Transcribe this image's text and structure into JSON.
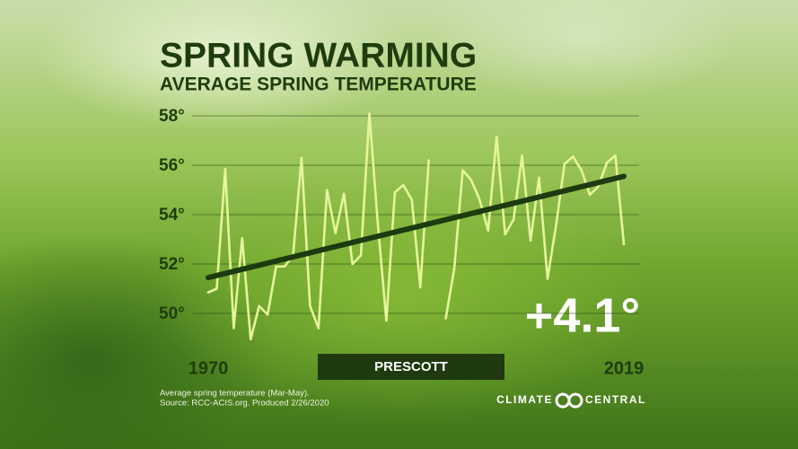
{
  "chart_data": {
    "type": "line",
    "title": "SPRING WARMING",
    "subtitle": "AVERAGE SPRING TEMPERATURE",
    "x": [
      1970,
      1971,
      1972,
      1973,
      1974,
      1975,
      1976,
      1977,
      1978,
      1979,
      1980,
      1981,
      1982,
      1983,
      1984,
      1985,
      1986,
      1987,
      1988,
      1989,
      1990,
      1991,
      1992,
      1993,
      1994,
      1995,
      1996,
      1997,
      1998,
      1999,
      2000,
      2001,
      2002,
      2003,
      2004,
      2005,
      2006,
      2007,
      2008,
      2009,
      2010,
      2011,
      2012,
      2013,
      2014,
      2015,
      2016,
      2017,
      2018,
      2019
    ],
    "series": [
      {
        "name": "PRESCOTT",
        "color": "#e4f59a",
        "values": [
          50.85,
          51.0,
          55.85,
          49.4,
          53.05,
          48.95,
          50.3,
          49.95,
          51.9,
          51.9,
          52.35,
          56.3,
          50.3,
          49.4,
          55.0,
          53.25,
          54.85,
          52.0,
          52.35,
          58.1,
          53.6,
          49.7,
          54.9,
          55.2,
          54.6,
          51.05,
          56.2,
          null,
          49.8,
          51.8,
          55.8,
          55.4,
          54.6,
          53.35,
          57.15,
          53.2,
          53.8,
          56.4,
          52.95,
          55.5,
          51.4,
          53.55,
          56.05,
          56.35,
          55.8,
          54.8,
          55.15,
          56.1,
          56.4,
          52.8
        ]
      }
    ],
    "trend": {
      "color": "#1d3a10",
      "x": [
        1970,
        2019
      ],
      "values": [
        51.45,
        55.55
      ]
    },
    "annotation": "+4.1°",
    "xlim": [
      1970,
      2019
    ],
    "xticks": [
      1970,
      2019
    ],
    "ylim": [
      50,
      58
    ],
    "yticks": [
      {
        "value": 50,
        "label": "50°"
      },
      {
        "value": 52,
        "label": "52°"
      },
      {
        "value": 54,
        "label": "54°"
      },
      {
        "value": 56,
        "label": "56°"
      },
      {
        "value": 58,
        "label": "58°"
      }
    ],
    "grid": true,
    "footnote": [
      "Average spring temperature (Mar-May).",
      "Source: RCC-ACIS.org. Produced 2/26/2020"
    ],
    "brand": [
      "CLIMATE",
      "CENTRAL"
    ]
  }
}
